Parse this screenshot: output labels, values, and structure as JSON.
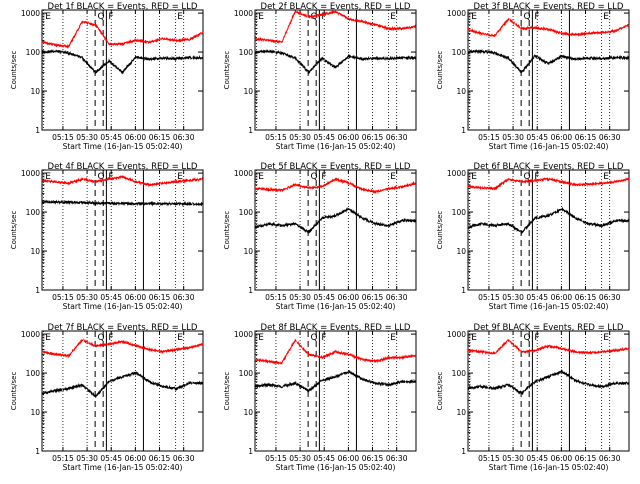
{
  "chart_data": {
    "type": "line",
    "shared": {
      "ylabel": "Counts/sec",
      "xlabel": "Start Time (16-Jan-15 05:02:40)",
      "yscale": "log",
      "ylim": [
        1,
        1200
      ],
      "y_ticks": [
        1,
        10,
        100,
        1000
      ],
      "y_tick_labels": [
        "1",
        "10",
        "100",
        "1000"
      ],
      "xlim_minutes_after_start": [
        0,
        100
      ],
      "x_tick_labels": [
        "05:15",
        "05:30",
        "05:45",
        "06:00",
        "06:15",
        "06:30"
      ],
      "series": [
        {
          "name": "Events",
          "color": "#000000"
        },
        {
          "name": "LLD",
          "color": "#ff0000"
        }
      ],
      "interval_markers": {
        "E": [
          1,
          83
        ],
        "Q": [
          33,
          38
        ],
        "F": [
          40,
          63
        ]
      },
      "annotations": [
        "E",
        "Q",
        "F",
        "E"
      ]
    },
    "panels": [
      {
        "title": "Det 1f BLACK = Events, RED = LLD",
        "black": [
          100,
          105,
          95,
          70,
          30,
          60,
          30,
          75,
          65,
          70,
          68,
          72,
          70
        ],
        "red": [
          180,
          150,
          140,
          600,
          500,
          160,
          160,
          200,
          180,
          220,
          200,
          210,
          320
        ]
      },
      {
        "title": "Det 2f BLACK = Events, RED = LLD",
        "black": [
          100,
          105,
          95,
          70,
          30,
          70,
          40,
          80,
          65,
          70,
          68,
          72,
          70
        ],
        "red": [
          220,
          200,
          180,
          1100,
          800,
          900,
          1100,
          700,
          600,
          500,
          400,
          400,
          450
        ]
      },
      {
        "title": "Det 3f BLACK = Events, RED = LLD",
        "black": [
          100,
          105,
          95,
          70,
          30,
          80,
          50,
          80,
          65,
          70,
          68,
          72,
          70
        ],
        "red": [
          380,
          300,
          260,
          700,
          400,
          420,
          380,
          300,
          280,
          300,
          320,
          350,
          500
        ]
      },
      {
        "title": "Det 4f BLACK = Events, RED = LLD",
        "black": [
          180,
          180,
          178,
          176,
          170,
          168,
          166,
          165,
          164,
          164,
          163,
          162,
          160
        ],
        "red": [
          650,
          600,
          550,
          700,
          600,
          700,
          800,
          600,
          500,
          550,
          600,
          650,
          700
        ]
      },
      {
        "title": "Det 5f BLACK = Events, RED = LLD",
        "black": [
          40,
          50,
          45,
          50,
          30,
          70,
          80,
          120,
          70,
          50,
          45,
          60,
          60
        ],
        "red": [
          400,
          380,
          360,
          500,
          420,
          450,
          700,
          550,
          380,
          330,
          400,
          450,
          550
        ]
      },
      {
        "title": "Det 6f BLACK = Events, RED = LLD",
        "black": [
          40,
          50,
          45,
          50,
          30,
          70,
          80,
          120,
          70,
          50,
          45,
          60,
          60
        ],
        "red": [
          450,
          420,
          400,
          700,
          600,
          650,
          700,
          600,
          500,
          520,
          550,
          600,
          700
        ]
      },
      {
        "title": "Det 7f BLACK = Events, RED = LLD",
        "black": [
          30,
          35,
          40,
          50,
          25,
          60,
          80,
          100,
          60,
          45,
          40,
          55,
          55
        ],
        "red": [
          350,
          300,
          280,
          700,
          500,
          550,
          650,
          500,
          400,
          350,
          400,
          450,
          550
        ]
      },
      {
        "title": "Det 8f BLACK = Events, RED = LLD",
        "black": [
          45,
          50,
          45,
          55,
          35,
          65,
          80,
          110,
          70,
          55,
          50,
          60,
          60
        ],
        "red": [
          220,
          200,
          180,
          700,
          300,
          250,
          350,
          300,
          220,
          200,
          250,
          250,
          280
        ]
      },
      {
        "title": "Det 9f BLACK = Events, RED = LLD",
        "black": [
          40,
          45,
          40,
          50,
          30,
          60,
          80,
          110,
          65,
          50,
          45,
          55,
          55
        ],
        "red": [
          380,
          350,
          320,
          700,
          350,
          380,
          500,
          420,
          350,
          330,
          350,
          380,
          420
        ]
      }
    ]
  }
}
